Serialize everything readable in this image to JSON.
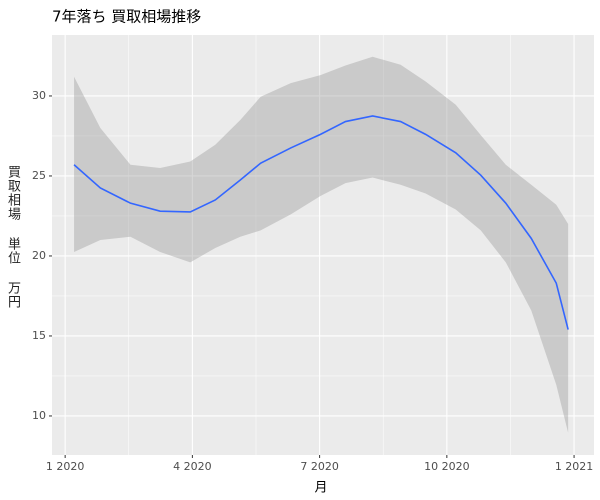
{
  "chart_data": {
    "type": "line",
    "title": "7年落ち 買取相場推移",
    "x_label": "月",
    "y_label": "買取相場 単位 万円",
    "x": [
      1.21,
      1.83,
      2.54,
      3.24,
      3.95,
      4.54,
      5.13,
      5.61,
      6.32,
      7.02,
      7.61,
      8.25,
      8.91,
      9.5,
      10.21,
      10.8,
      11.39,
      11.99,
      12.58,
      12.86
    ],
    "values": [
      25.7,
      24.25,
      23.3,
      22.8,
      22.75,
      23.5,
      24.75,
      25.8,
      26.75,
      27.6,
      28.4,
      28.75,
      28.4,
      27.6,
      26.45,
      25.05,
      23.3,
      21.1,
      18.3,
      15.4
    ],
    "ci_upper": [
      31.2,
      28.0,
      25.7,
      25.5,
      25.9,
      26.95,
      28.5,
      29.95,
      30.8,
      31.3,
      31.9,
      32.45,
      31.95,
      30.9,
      29.45,
      27.55,
      25.7,
      24.45,
      23.2,
      22.0
    ],
    "ci_lower": [
      20.25,
      21.0,
      21.2,
      20.25,
      19.6,
      20.5,
      21.2,
      21.6,
      22.6,
      23.75,
      24.55,
      24.9,
      24.45,
      23.9,
      22.9,
      21.6,
      19.6,
      16.6,
      11.95,
      8.95
    ],
    "color": "#3366ff",
    "band_color": "#999999",
    "xlim": [
      0.69,
      13.47
    ],
    "xticks": [
      {
        "value": 1,
        "label": "1 2020"
      },
      {
        "value": 4,
        "label": "4 2020"
      },
      {
        "value": 7,
        "label": "7 2020"
      },
      {
        "value": 10,
        "label": "10 2020"
      },
      {
        "value": 13,
        "label": "1 2021"
      }
    ],
    "ylim": [
      7.56,
      33.81
    ],
    "yticks": [
      10,
      15,
      20,
      25,
      30
    ],
    "grid": true
  }
}
